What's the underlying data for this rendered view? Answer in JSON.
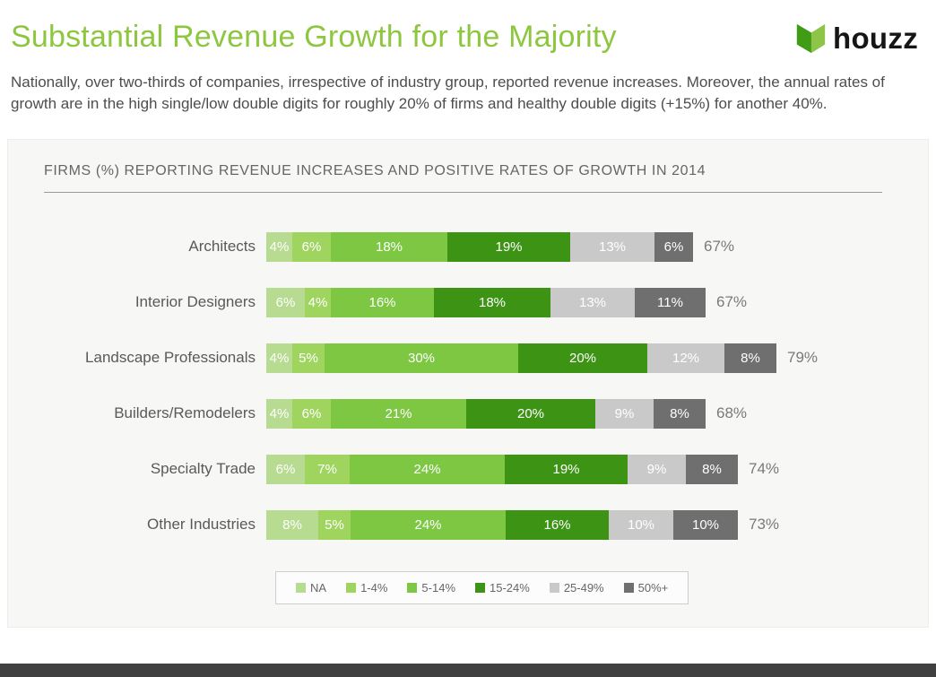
{
  "header": {
    "title": "Substantial Revenue Growth for the Majority",
    "logo_text": "houzz",
    "intro": "Nationally, over two-thirds of companies, irrespective of industry group, reported revenue increases. Moreover, the annual rates of growth are in the high single/low double digits for roughly 20% of firms and healthy double digits (+15%) for another 40%."
  },
  "chart_data": {
    "type": "bar",
    "stacked": true,
    "orientation": "horizontal",
    "title": "FIRMS (%) REPORTING REVENUE INCREASES AND POSITIVE RATES OF GROWTH IN 2014",
    "unit": "%",
    "categories": [
      "Architects",
      "Interior Designers",
      "Landscape Professionals",
      "Builders/Remodelers",
      "Specialty Trade",
      "Other Industries"
    ],
    "totals": [
      "67%",
      "67%",
      "79%",
      "68%",
      "74%",
      "73%"
    ],
    "series": [
      {
        "name": "NA",
        "color": "#b7db90",
        "values": [
          4,
          6,
          4,
          4,
          6,
          8
        ]
      },
      {
        "name": "1-4%",
        "color": "#9fd55f",
        "values": [
          6,
          4,
          5,
          6,
          7,
          5
        ]
      },
      {
        "name": "5-14%",
        "color": "#7dc742",
        "values": [
          18,
          16,
          30,
          21,
          24,
          24
        ]
      },
      {
        "name": "15-24%",
        "color": "#3c9314",
        "values": [
          19,
          18,
          20,
          20,
          19,
          16
        ]
      },
      {
        "name": "25-49%",
        "color": "#c9c9c9",
        "values": [
          13,
          13,
          12,
          9,
          9,
          10
        ]
      },
      {
        "name": "50%+",
        "color": "#6f6f6f",
        "values": [
          6,
          11,
          8,
          8,
          8,
          10
        ]
      }
    ],
    "legend_position": "bottom",
    "grid": false
  },
  "colors": {
    "title_green": "#8dc63f",
    "logo_green_dark": "#3f9c14",
    "logo_green_light": "#8ec549",
    "panel_bg": "#f7f7f5",
    "footer_bar": "#404040"
  }
}
